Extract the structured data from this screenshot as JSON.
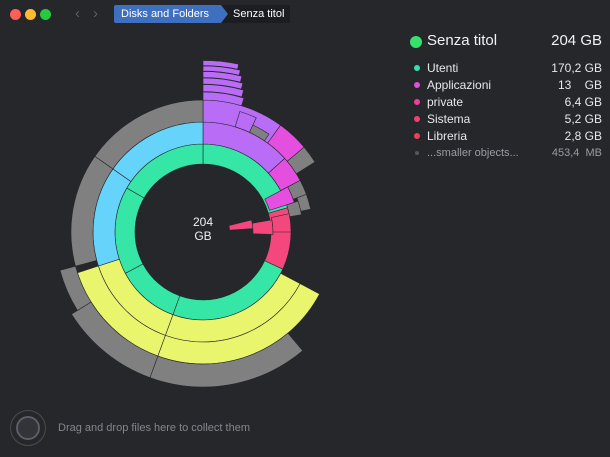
{
  "window": {
    "breadcrumb": {
      "parent": "Disks and Folders",
      "current": "Senza titol"
    }
  },
  "center": {
    "line1": "204",
    "line2": "GB"
  },
  "info": {
    "title": "Senza titol",
    "total": "204 GB",
    "title_color": "#35e06d",
    "items": [
      {
        "label": "Utenti",
        "value": "170,2 GB",
        "color": "#35e0b4"
      },
      {
        "label": "Applicazioni",
        "value": "13    GB",
        "color": "#e04fd6"
      },
      {
        "label": "private",
        "value": "6,4 GB",
        "color": "#f03f9a"
      },
      {
        "label": "Sistema",
        "value": "5,2 GB",
        "color": "#f33f74"
      },
      {
        "label": "Libreria",
        "value": "2,8 GB",
        "color": "#f03f5b"
      }
    ],
    "smaller": {
      "label": "...smaller objects...",
      "value": "453,4  MB"
    }
  },
  "dropzone": {
    "hint": "Drag and drop files here to collect them"
  }
}
